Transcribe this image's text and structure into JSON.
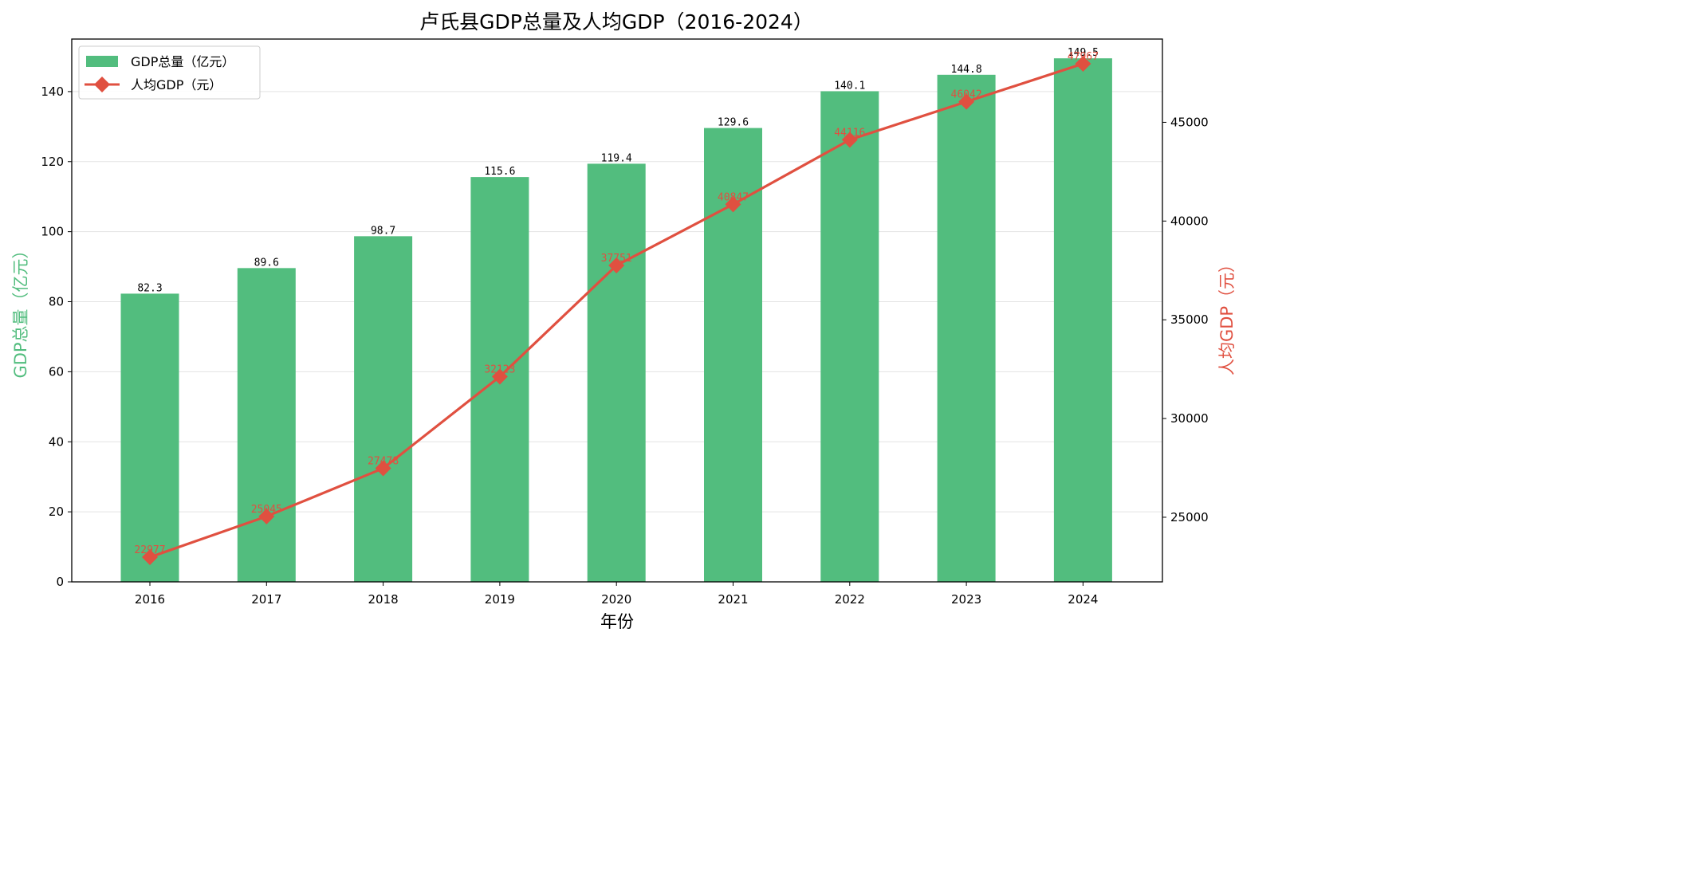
{
  "chart_data": {
    "type": "bar",
    "title": "卢氏县GDP总量及人均GDP（2016-2024）",
    "xlabel": "年份",
    "ylabel": "GDP总量（亿元）",
    "ylabel_right": "人均GDP（元）",
    "categories": [
      "2016",
      "2017",
      "2018",
      "2019",
      "2020",
      "2021",
      "2022",
      "2023",
      "2024"
    ],
    "series": [
      {
        "name": "GDP总量（亿元）",
        "type": "bar",
        "axis": "left",
        "color": "#52bd7e",
        "values": [
          82.3,
          89.6,
          98.7,
          115.6,
          119.4,
          129.6,
          140.1,
          144.8,
          149.5
        ],
        "labels": [
          "82.3",
          "89.6",
          "98.7",
          "115.6",
          "119.4",
          "129.6",
          "140.1",
          "144.8",
          "149.5"
        ]
      },
      {
        "name": "人均GDP（元）",
        "type": "line",
        "axis": "right",
        "color": "#e05040",
        "marker": "diamond",
        "values": [
          22977,
          25045,
          27478,
          32123,
          37751,
          40847,
          44116,
          46042,
          47967
        ],
        "labels": [
          "22977",
          "25045",
          "27478",
          "32123",
          "37751",
          "40847",
          "44116",
          "46042",
          "47967"
        ]
      }
    ],
    "ylim": [
      0,
      155
    ],
    "yticks": [
      0,
      20,
      40,
      60,
      80,
      100,
      120,
      140
    ],
    "ylim_right": [
      21728,
      49216
    ],
    "yticks_right": [
      25000,
      30000,
      35000,
      40000,
      45000
    ],
    "grid": "horizontal",
    "legend_position": "top-left"
  }
}
